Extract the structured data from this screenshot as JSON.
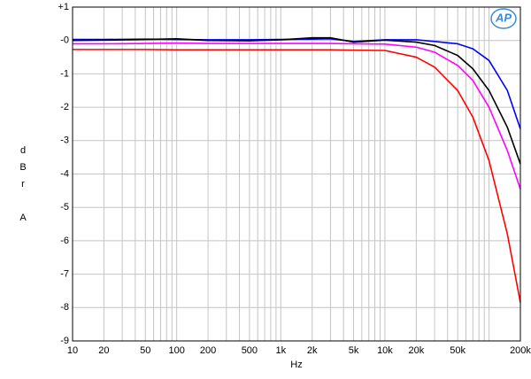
{
  "chart_data": {
    "type": "line",
    "x_label": "Hz",
    "y_label": "dBr A",
    "logo": "AP",
    "x": [
      10,
      20,
      50,
      100,
      200,
      500,
      1000,
      2000,
      3000,
      5000,
      10000,
      20000,
      30000,
      50000,
      70000,
      100000,
      150000,
      200000
    ],
    "series": [
      {
        "color": "#0000ff",
        "values": [
          0.03,
          0.03,
          0.04,
          0.03,
          0.02,
          0.02,
          0.03,
          0.04,
          0.05,
          -0.03,
          0.02,
          0.02,
          -0.03,
          -0.1,
          -0.25,
          -0.6,
          -1.5,
          -2.65
        ]
      },
      {
        "color": "#000000",
        "values": [
          0.0,
          0.01,
          0.03,
          0.05,
          0.0,
          -0.01,
          0.02,
          0.08,
          0.08,
          -0.05,
          0.01,
          -0.05,
          -0.15,
          -0.45,
          -0.85,
          -1.5,
          -2.6,
          -3.7
        ]
      },
      {
        "color": "#ff00ff",
        "values": [
          -0.1,
          -0.1,
          -0.09,
          -0.08,
          -0.09,
          -0.09,
          -0.09,
          -0.09,
          -0.09,
          -0.1,
          -0.11,
          -0.2,
          -0.35,
          -0.75,
          -1.2,
          -2.0,
          -3.3,
          -4.45
        ]
      },
      {
        "color": "#ff0000",
        "values": [
          -0.27,
          -0.27,
          -0.27,
          -0.28,
          -0.28,
          -0.28,
          -0.28,
          -0.28,
          -0.28,
          -0.29,
          -0.3,
          -0.5,
          -0.8,
          -1.5,
          -2.3,
          -3.6,
          -5.8,
          -7.85
        ]
      }
    ],
    "xlim": [
      10,
      200000
    ],
    "log_x": true,
    "xticks": [
      10,
      20,
      50,
      100,
      200,
      500,
      {
        "value": 1000,
        "label": "1k"
      },
      {
        "value": 2000,
        "label": "2k"
      },
      {
        "value": 5000,
        "label": "5k"
      },
      {
        "value": 10000,
        "label": "10k"
      },
      {
        "value": 20000,
        "label": "20k"
      },
      {
        "value": 50000,
        "label": "50k"
      },
      {
        "value": 200000,
        "label": "200k"
      }
    ],
    "xminor": [
      30,
      40,
      60,
      70,
      80,
      90,
      300,
      400,
      600,
      700,
      800,
      900,
      3000,
      4000,
      6000,
      7000,
      8000,
      9000,
      30000,
      40000,
      60000,
      70000,
      80000,
      90000,
      100000
    ],
    "ylim": [
      -9,
      1
    ],
    "yticks": [
      {
        "value": 1,
        "label": "+1"
      },
      {
        "value": 0,
        "label": "-0"
      },
      -1,
      -2,
      -3,
      -4,
      -5,
      -6,
      -7,
      -8,
      -9
    ],
    "grid": true
  }
}
